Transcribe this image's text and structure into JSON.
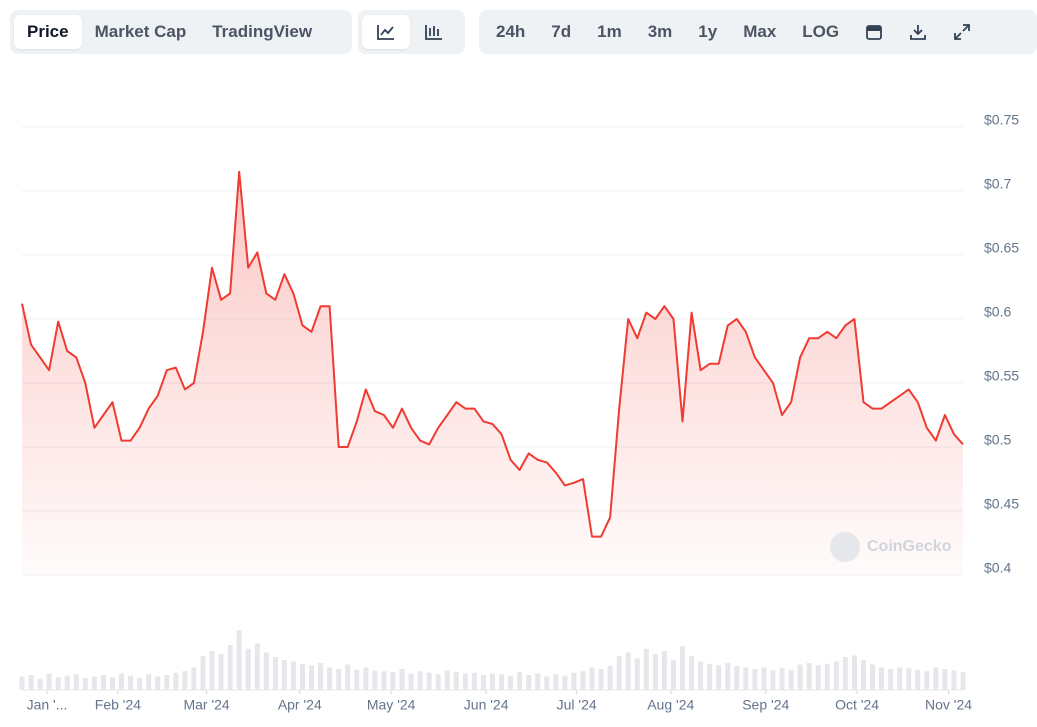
{
  "toolbar": {
    "tabs": [
      "Price",
      "Market Cap",
      "TradingView"
    ],
    "ranges": [
      "24h",
      "7d",
      "1m",
      "3m",
      "1y",
      "Max",
      "LOG"
    ]
  },
  "watermark": "CoinGecko",
  "chart_data": {
    "type": "line",
    "color": "#ef3b32",
    "values": [
      0.612,
      0.58,
      0.57,
      0.56,
      0.598,
      0.575,
      0.57,
      0.55,
      0.515,
      0.525,
      0.535,
      0.505,
      0.505,
      0.515,
      0.53,
      0.54,
      0.56,
      0.562,
      0.545,
      0.55,
      0.59,
      0.64,
      0.615,
      0.62,
      0.715,
      0.64,
      0.652,
      0.62,
      0.615,
      0.635,
      0.62,
      0.595,
      0.59,
      0.61,
      0.61,
      0.5,
      0.5,
      0.52,
      0.545,
      0.528,
      0.525,
      0.515,
      0.53,
      0.515,
      0.505,
      0.502,
      0.515,
      0.525,
      0.535,
      0.53,
      0.53,
      0.52,
      0.518,
      0.51,
      0.49,
      0.482,
      0.495,
      0.49,
      0.488,
      0.48,
      0.47,
      0.472,
      0.475,
      0.43,
      0.43,
      0.445,
      0.53,
      0.6,
      0.585,
      0.605,
      0.6,
      0.61,
      0.6,
      0.52,
      0.605,
      0.56,
      0.565,
      0.565,
      0.595,
      0.6,
      0.59,
      0.57,
      0.56,
      0.55,
      0.525,
      0.535,
      0.57,
      0.585,
      0.585,
      0.59,
      0.585,
      0.595,
      0.6,
      0.535,
      0.53,
      0.53,
      0.535,
      0.54,
      0.545,
      0.535,
      0.515,
      0.505,
      0.525,
      0.51,
      0.502
    ],
    "volume": [
      18,
      20,
      15,
      22,
      17,
      19,
      21,
      16,
      18,
      20,
      17,
      22,
      19,
      16,
      21,
      18,
      20,
      23,
      25,
      30,
      45,
      52,
      48,
      60,
      80,
      55,
      62,
      50,
      44,
      40,
      38,
      35,
      33,
      36,
      30,
      28,
      34,
      27,
      30,
      26,
      25,
      24,
      28,
      22,
      25,
      23,
      21,
      26,
      24,
      22,
      23,
      20,
      22,
      21,
      19,
      24,
      20,
      22,
      18,
      21,
      19,
      23,
      25,
      30,
      28,
      32,
      45,
      50,
      42,
      55,
      48,
      52,
      40,
      58,
      45,
      38,
      35,
      33,
      36,
      32,
      30,
      28,
      30,
      26,
      29,
      27,
      34,
      36,
      33,
      35,
      38,
      44,
      46,
      40,
      34,
      30,
      28,
      30,
      29,
      27,
      25,
      30,
      28,
      26,
      24
    ],
    "volume_lim": [
      0,
      100
    ],
    "xlim": [
      0,
      104
    ],
    "xticks": [
      {
        "value": 2.76,
        "label": "Jan '..."
      },
      {
        "value": 10.6,
        "label": "Feb '24"
      },
      {
        "value": 20.4,
        "label": "Mar '24"
      },
      {
        "value": 30.7,
        "label": "Apr '24"
      },
      {
        "value": 40.8,
        "label": "May '24"
      },
      {
        "value": 51.3,
        "label": "Jun '24"
      },
      {
        "value": 61.3,
        "label": "Jul '24"
      },
      {
        "value": 71.7,
        "label": "Aug '24"
      },
      {
        "value": 82.2,
        "label": "Sep '24"
      },
      {
        "value": 92.3,
        "label": "Oct '24"
      },
      {
        "value": 102.4,
        "label": "Nov '24"
      }
    ],
    "ylim": [
      0.4,
      0.75
    ],
    "yticks": [
      {
        "value": 0.75,
        "label": "$0.75"
      },
      {
        "value": 0.7,
        "label": "$0.7"
      },
      {
        "value": 0.65,
        "label": "$0.65"
      },
      {
        "value": 0.6,
        "label": "$0.6"
      },
      {
        "value": 0.55,
        "label": "$0.55"
      },
      {
        "value": 0.5,
        "label": "$0.5"
      },
      {
        "value": 0.45,
        "label": "$0.45"
      },
      {
        "value": 0.4,
        "label": "$0.4"
      }
    ],
    "grid": true
  }
}
